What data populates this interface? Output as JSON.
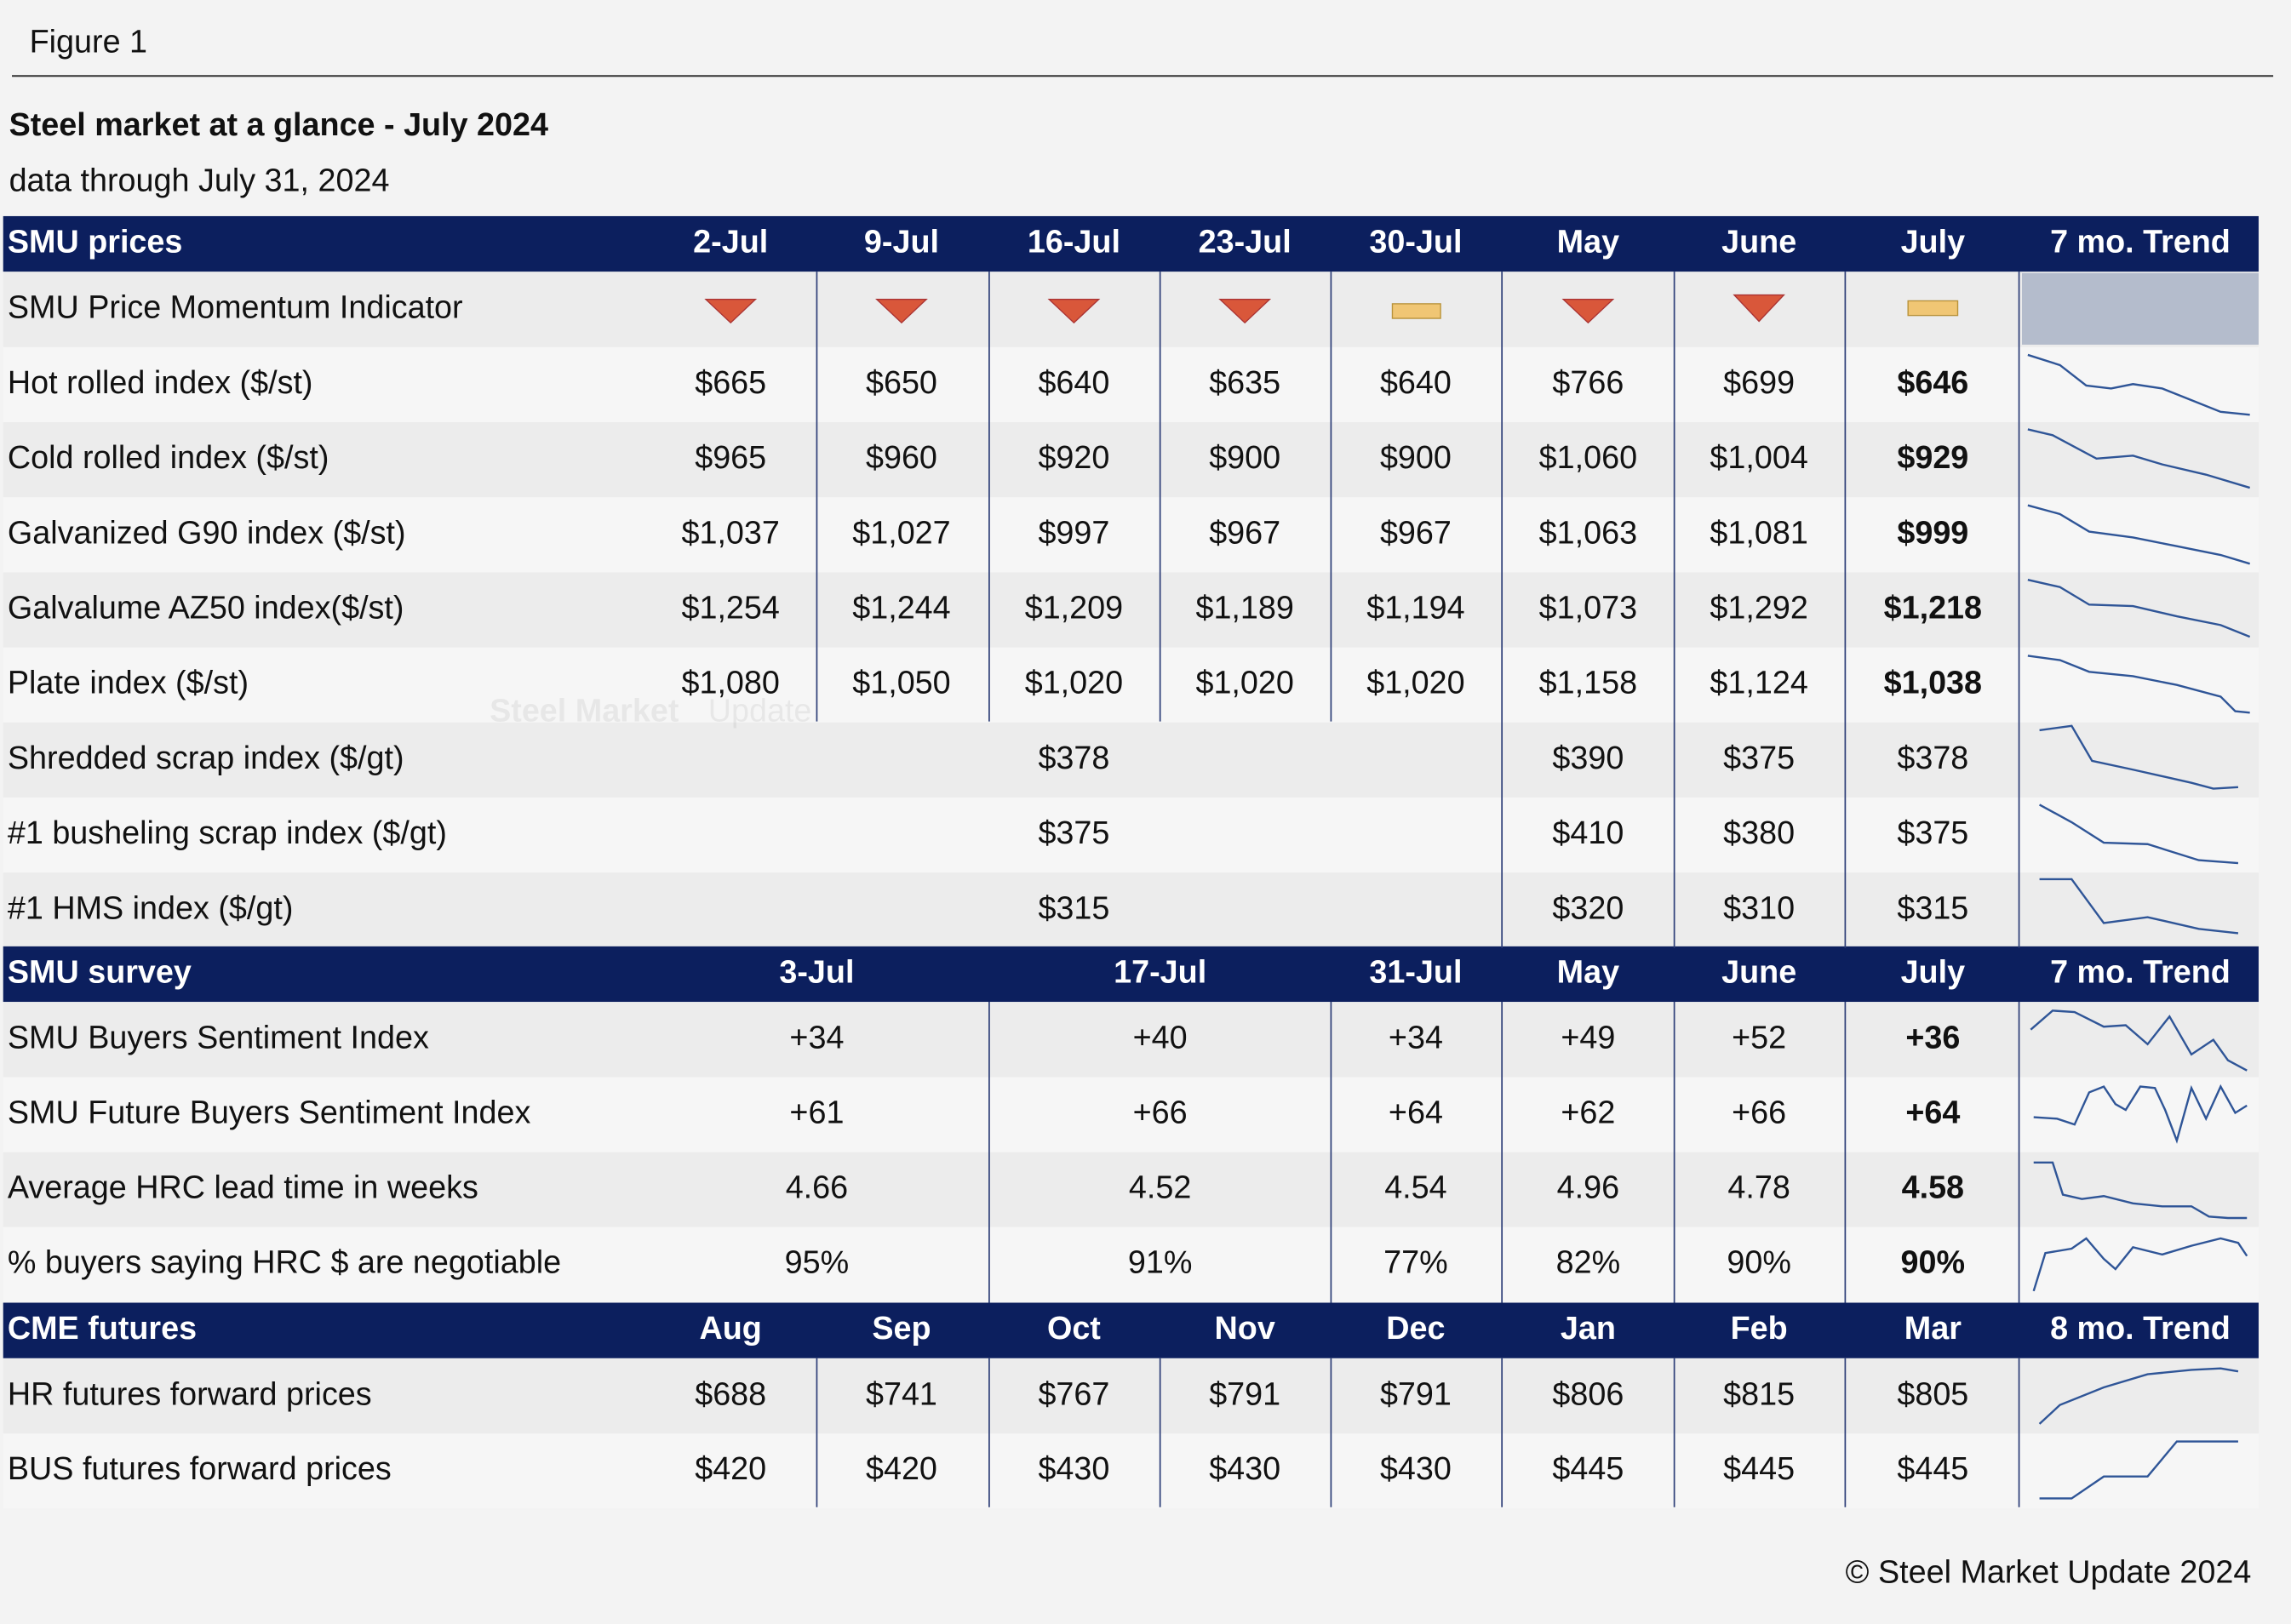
{
  "figure_label": "Figure 1",
  "title": "Steel market at a glance - July 2024",
  "subtitle": "data through July 31, 2024",
  "watermark": {
    "bold": "Steel Market",
    "light": "Update"
  },
  "sections": [
    {
      "header": [
        "SMU prices",
        "2-Jul",
        "9-Jul",
        "16-Jul",
        "23-Jul",
        "30-Jul",
        "May",
        "June",
        "July",
        "7 mo. Trend"
      ],
      "rows": [
        [
          "SMU Price Momentum Indicator"
        ],
        [
          "Hot rolled index ($/st)",
          "$665",
          "$650",
          "$640",
          "$635",
          "$640",
          "$766",
          "$699",
          "$646"
        ],
        [
          "Cold rolled index ($/st)",
          "$965",
          "$960",
          "$920",
          "$900",
          "$900",
          "$1,060",
          "$1,004",
          "$929"
        ],
        [
          "Galvanized G90 index ($/st)",
          "$1,037",
          "$1,027",
          "$997",
          "$967",
          "$967",
          "$1,063",
          "$1,081",
          "$999"
        ],
        [
          "Galvalume AZ50 index($/st)",
          "$1,254",
          "$1,244",
          "$1,209",
          "$1,189",
          "$1,194",
          "$1,073",
          "$1,292",
          "$1,218"
        ],
        [
          "Plate index ($/st)",
          "$1,080",
          "$1,050",
          "$1,020",
          "$1,020",
          "$1,020",
          "$1,158",
          "$1,124",
          "$1,038"
        ],
        [
          "Shredded scrap index ($/gt)",
          "$378",
          "$390",
          "$375",
          "$378"
        ],
        [
          "#1 busheling scrap index ($/gt)",
          "$375",
          "$410",
          "$380",
          "$375"
        ],
        [
          "#1 HMS index ($/gt)",
          "$315",
          "$320",
          "$310",
          "$315"
        ]
      ]
    },
    {
      "header": [
        "SMU survey",
        "3-Jul",
        "17-Jul",
        "31-Jul",
        "May",
        "June",
        "July",
        "7 mo. Trend"
      ],
      "rows": [
        [
          "SMU Buyers Sentiment Index",
          "+34",
          "+40",
          "+34",
          "+49",
          "+52",
          "+36"
        ],
        [
          "SMU Future Buyers Sentiment Index",
          "+61",
          "+66",
          "+64",
          "+62",
          "+66",
          "+64"
        ],
        [
          "Average HRC lead time in weeks",
          "4.66",
          "4.52",
          "4.54",
          "4.96",
          "4.78",
          "4.58"
        ],
        [
          "% buyers saying HRC $ are negotiable",
          "95%",
          "91%",
          "77%",
          "82%",
          "90%",
          "90%"
        ]
      ]
    },
    {
      "header": [
        "CME futures",
        "Aug",
        "Sep",
        "Oct",
        "Nov",
        "Dec",
        "Jan",
        "Feb",
        "Mar",
        "8 mo. Trend"
      ],
      "rows": [
        [
          "HR futures forward prices",
          "$688",
          "$741",
          "$767",
          "$791",
          "$791",
          "$806",
          "$815",
          "$805"
        ],
        [
          "BUS futures forward prices",
          "$420",
          "$420",
          "$430",
          "$430",
          "$430",
          "$445",
          "$445",
          "$445"
        ]
      ]
    }
  ],
  "footer": "© Steel Market Update 2024"
}
